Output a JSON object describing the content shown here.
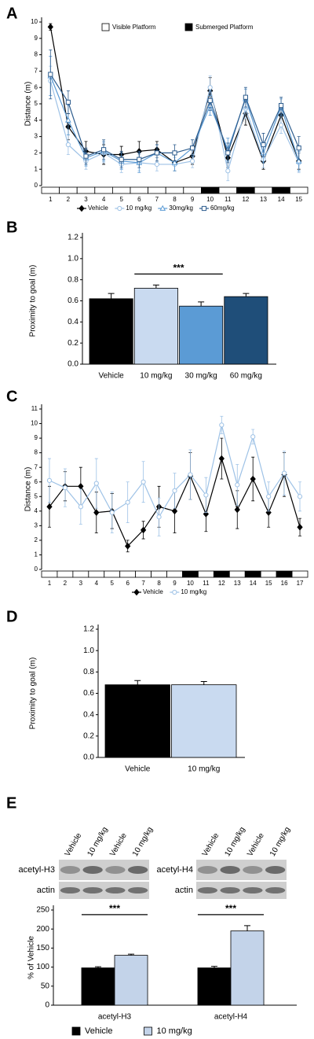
{
  "chart_data": [
    {
      "type": "line",
      "panel": "A",
      "ylabel": "Distance (m)",
      "categories": [
        "1",
        "2",
        "3",
        "4",
        "5",
        "6",
        "7",
        "8",
        "9",
        "10",
        "11",
        "12",
        "13",
        "14",
        "15"
      ],
      "ylim": [
        0,
        10
      ],
      "yticks": [
        0,
        1,
        2,
        3,
        4,
        5,
        6,
        7,
        8,
        9,
        10
      ],
      "submerged": [
        10,
        12,
        14
      ],
      "platform_legend": [
        "Visible Platform",
        "Submerged Platform"
      ],
      "series": [
        {
          "name": "Vehicle",
          "color": "#000000",
          "marker": "diamond",
          "values": [
            9.7,
            3.6,
            2.1,
            1.9,
            1.9,
            2.1,
            2.2,
            1.4,
            1.8,
            5.8,
            1.7,
            4.4,
            1.5,
            4.3,
            1.5
          ],
          "errors": [
            0.2,
            0.8,
            0.6,
            0.6,
            0.5,
            0.6,
            0.5,
            0.5,
            0.5,
            0.8,
            0.6,
            0.7,
            0.5,
            0.6,
            0.5
          ]
        },
        {
          "name": "10 mg/kg",
          "color": "#9ec2e6",
          "marker": "circle",
          "values": [
            6.4,
            2.5,
            1.5,
            2.0,
            1.3,
            1.4,
            1.3,
            1.3,
            1.5,
            6.0,
            0.9,
            4.7,
            1.6,
            3.7,
            1.4
          ],
          "errors": [
            0.9,
            0.6,
            0.5,
            0.6,
            0.5,
            0.5,
            0.4,
            0.4,
            0.4,
            0.7,
            0.6,
            0.6,
            0.5,
            0.5,
            0.6
          ]
        },
        {
          "name": "30mg/kg",
          "color": "#5b9bd5",
          "marker": "triangle",
          "values": [
            6.7,
            4.0,
            1.7,
            2.1,
            1.5,
            1.4,
            2.0,
            1.4,
            2.3,
            4.9,
            2.2,
            5.3,
            2.0,
            4.8,
            1.5
          ],
          "errors": [
            1.2,
            0.9,
            0.5,
            0.6,
            0.5,
            0.6,
            0.5,
            0.5,
            0.5,
            0.6,
            0.7,
            0.6,
            0.6,
            0.5,
            0.6
          ]
        },
        {
          "name": "60mg/kg",
          "color": "#2e5d8e",
          "marker": "square",
          "values": [
            6.8,
            5.1,
            1.8,
            2.2,
            1.6,
            1.6,
            2.0,
            2.0,
            2.3,
            5.2,
            2.0,
            5.4,
            2.5,
            4.9,
            2.3
          ],
          "errors": [
            1.5,
            0.7,
            0.5,
            0.6,
            0.5,
            0.5,
            0.5,
            0.5,
            0.5,
            0.6,
            0.6,
            0.6,
            0.7,
            0.5,
            0.7
          ]
        }
      ]
    },
    {
      "type": "bar",
      "panel": "B",
      "ylabel": "Proximity to goal (m)",
      "categories": [
        "Vehicle",
        "10 mg/kg",
        "30 mg/kg",
        "60 mg/kg"
      ],
      "values": [
        0.62,
        0.72,
        0.55,
        0.64
      ],
      "errors": [
        0.05,
        0.03,
        0.04,
        0.03
      ],
      "colors": [
        "#000000",
        "#c9daf0",
        "#5b9bd5",
        "#1f4e79"
      ],
      "ylim": [
        0,
        1.2
      ],
      "yticks": [
        {
          "value": 0,
          "label": "0.0"
        },
        0.2,
        0.4,
        0.6,
        0.8,
        {
          "value": 1,
          "label": "1.0"
        },
        1.2
      ],
      "annotations": [
        {
          "text": "***",
          "categories": [
            "10 mg/kg",
            "30 mg/kg"
          ]
        }
      ]
    },
    {
      "type": "line",
      "panel": "C",
      "ylabel": "Distance (m)",
      "categories": [
        "1",
        "2",
        "3",
        "4",
        "5",
        "6",
        "7",
        "8",
        "9",
        "10",
        "11",
        "12",
        "13",
        "14",
        "15",
        "16",
        "17"
      ],
      "ylim": [
        0,
        11
      ],
      "yticks": [
        0,
        1,
        2,
        3,
        4,
        5,
        6,
        7,
        8,
        9,
        10,
        11
      ],
      "submerged": [
        10,
        12,
        14,
        16
      ],
      "series": [
        {
          "name": "Vehicle",
          "color": "#000000",
          "marker": "diamond",
          "values": [
            4.3,
            5.7,
            5.7,
            3.9,
            4.0,
            1.6,
            2.7,
            4.3,
            4.0,
            6.4,
            3.8,
            7.6,
            4.1,
            6.2,
            3.9,
            6.5,
            2.9
          ],
          "errors": [
            1.4,
            1.0,
            1.3,
            1.4,
            1.2,
            0.4,
            0.6,
            1.4,
            1.5,
            1.6,
            1.2,
            1.4,
            1.3,
            1.5,
            1.0,
            1.5,
            0.6
          ]
        },
        {
          "name": "10 mg/kg",
          "color": "#9ec2e6",
          "marker": "circle",
          "values": [
            6.1,
            5.6,
            4.3,
            5.9,
            3.9,
            4.6,
            6.0,
            3.6,
            5.4,
            6.5,
            5.1,
            9.9,
            5.8,
            9.1,
            5.0,
            6.6,
            5.0
          ],
          "errors": [
            1.5,
            1.3,
            1.2,
            1.7,
            1.4,
            1.4,
            1.4,
            1.3,
            1.2,
            1.7,
            1.2,
            0.6,
            1.4,
            0.5,
            1.0,
            1.5,
            1.0
          ]
        }
      ]
    },
    {
      "type": "bar",
      "panel": "D",
      "ylabel": "Proximity to goal (m)",
      "categories": [
        "Vehicle",
        "10 mg/kg"
      ],
      "values": [
        0.68,
        0.68
      ],
      "errors": [
        0.04,
        0.03
      ],
      "colors": [
        "#000000",
        "#c9daf0"
      ],
      "ylim": [
        0,
        1.2
      ],
      "yticks": [
        {
          "value": 0,
          "label": "0.0"
        },
        0.2,
        0.4,
        0.6,
        0.8,
        {
          "value": 1,
          "label": "1.0"
        },
        1.2
      ]
    },
    {
      "type": "bar",
      "panel": "E",
      "ylabel": "% of Vehicle",
      "categories": [
        "acetyl-H3",
        "acetyl-H4"
      ],
      "series": [
        {
          "name": "Vehicle",
          "color": "#000000",
          "values": [
            98,
            98
          ],
          "errors": [
            3,
            4
          ]
        },
        {
          "name": "10 mg/kg",
          "color": "#c3d3e9",
          "values": [
            131,
            195
          ],
          "errors": [
            3,
            14
          ]
        }
      ],
      "ylim": [
        0,
        250
      ],
      "yticks": [
        0,
        50,
        100,
        150,
        200,
        250
      ],
      "annotations": [
        {
          "text": "***",
          "category": "acetyl-H3"
        },
        {
          "text": "***",
          "category": "acetyl-H4"
        }
      ]
    }
  ],
  "blots": [
    {
      "lanes": [
        "Vehicle",
        "10 mg/kg",
        "Vehicle",
        "10 mg/kg"
      ],
      "rows": [
        "acetyl-H3",
        "actin"
      ]
    },
    {
      "lanes": [
        "Vehicle",
        "10 mg/kg",
        "Vehicle",
        "10 mg/kg"
      ],
      "rows": [
        "acetyl-H4",
        "actin"
      ]
    }
  ]
}
